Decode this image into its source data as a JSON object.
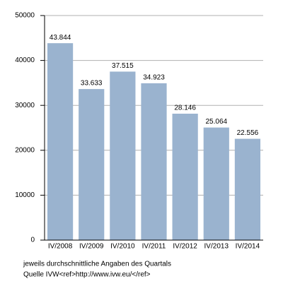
{
  "chart_data": {
    "type": "bar",
    "categories": [
      "IV/2008",
      "IV/2009",
      "IV/2010",
      "IV/2011",
      "IV/2012",
      "IV/2013",
      "IV/2014"
    ],
    "values": [
      43844,
      33633,
      37515,
      34923,
      28146,
      25064,
      22556
    ],
    "value_labels": [
      "43.844",
      "33.633",
      "37.515",
      "34.923",
      "28.146",
      "25.064",
      "22.556"
    ],
    "color": "#9ab3cf",
    "ylim": [
      0,
      50000
    ],
    "yticks": [
      0,
      10000,
      20000,
      30000,
      40000,
      50000
    ],
    "grid": true,
    "notes": [
      "jeweils durchschnittliche Angaben des Quartals",
      "Quelle IVW<ref>http://www.ivw.eu/</ref>"
    ]
  }
}
